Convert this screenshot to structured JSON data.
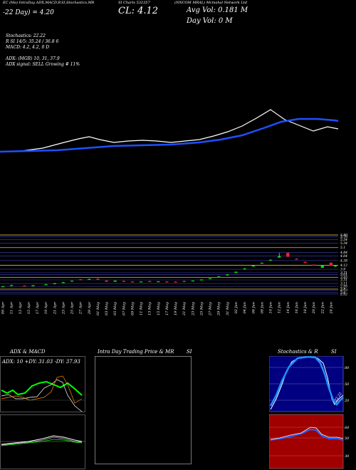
{
  "header": {
    "title_left": "EC (Ma) IntraDay ADX,MACD,R",
    "title_mid": "SI,Stochastics,MR",
    "title_right": "SI Charts 532357",
    "title_symbol": "(NNCOM MRAL) Mcmahal Network Ltd",
    "day_line": "-22 Day) = 4.20",
    "close_label": "CL: 4.12",
    "avg_vol": "Avg Vol: 0.181 M",
    "day_vol": "Day Vol: 0   M"
  },
  "indicators": {
    "stoch_line": "Stochastics: 22.22",
    "rsi_line": "R                  SI 14/5: 35.24  / 36.8                6",
    "macd_line": "MACD: 4.2, 4.2, 0  D",
    "adx_line": "ADX:                           (MGR) 10, 31, 37.9",
    "adx_signal": "ADX  signal: SELL Growing # 11%"
  },
  "panels": {
    "adx_title": "ADX  & MACD",
    "adx_readout": "ADX: 10  +DY: 31.03  -DY: 37.93",
    "intra_title": "Intra  Day Trading Price  & MR",
    "intra_title2": "SI",
    "stoch_title": "Stochastics & R",
    "stoch_title2": "SI"
  },
  "price_axis": [
    "5.80",
    "5.70",
    "5.54",
    "5.34",
    "5.1",
    "4.84",
    "4.64",
    "4.38",
    "4.12",
    "3.9",
    "3.71",
    "3.61",
    "3.45",
    "3.31",
    "3.11",
    "2.95",
    "2.8",
    "2.73",
    "2.6",
    "2.52"
  ],
  "stoch_axis": [
    "80",
    "50",
    "20"
  ],
  "rsi_axis": [
    "60",
    "50",
    "30"
  ],
  "stoch_label": "22.22",
  "colors": {
    "background": "#000000",
    "up_candle": "#00e000",
    "down_candle": "#ff2020",
    "ema_line": "#1e50ff",
    "price_line": "#ffffff",
    "stoch_bg": "#000080",
    "rsi_bg": "#a00000",
    "adx_green": "#00ff00",
    "macd_orange": "#ff8c00"
  },
  "chart_data": {
    "type": "candlestick",
    "dates": [
      "09 Apr",
      "10 Apr",
      "11 Apr",
      "12 Apr",
      "13 Apr",
      "14 Apr",
      "15 Apr",
      "16 Apr",
      "17 Apr",
      "18 Apr",
      "19 Apr",
      "20 Apr",
      "21 Apr",
      "22 Apr",
      "23 Apr",
      "24 Apr",
      "25 Apr",
      "26 Apr",
      "27 Apr",
      "28 Apr",
      "29 Apr",
      "30 Apr",
      "01 May",
      "02 May",
      "03 May",
      "04 May",
      "05 May",
      "06 May",
      "07 May",
      "08 May",
      "09 May",
      "10 May",
      "11 May",
      "12 May",
      "13 May",
      "14 May",
      "15 May",
      "16 May",
      "17 May",
      "18 May",
      "19 May",
      "20 May",
      "21 May",
      "22 May",
      "23 May",
      "24 May",
      "25 May",
      "26 May",
      "27 May",
      "28 May",
      "29 May",
      "30 May",
      "31 May",
      "01 Jun",
      "02 Jun",
      "03 Jun",
      "04 Jun",
      "05 Jun",
      "06 Jun",
      "07 Jun",
      "08 Jun",
      "09 Jun",
      "10 Jun",
      "11 Jun",
      "12 Jun",
      "13 Jun",
      "14 Jun",
      "15 Jun",
      "16 Jun",
      "17 Jun",
      "18 Jun",
      "19 Jun",
      "20 Jun",
      "21 Jun",
      "22 Jun",
      "23 Jun",
      "24 Jun",
      "25 Jun"
    ],
    "candles": [
      {
        "i": 0,
        "o": 2.95,
        "c": 2.95,
        "h": 2.97,
        "l": 2.92
      },
      {
        "i": 2,
        "o": 2.98,
        "c": 3.02,
        "h": 3.04,
        "l": 2.97
      },
      {
        "i": 5,
        "o": 2.99,
        "c": 2.97,
        "h": 3.0,
        "l": 2.95
      },
      {
        "i": 7,
        "o": 2.96,
        "c": 3.01,
        "h": 3.02,
        "l": 2.95
      },
      {
        "i": 10,
        "o": 3.04,
        "c": 3.06,
        "h": 3.09,
        "l": 3.03
      },
      {
        "i": 12,
        "o": 3.1,
        "c": 3.12,
        "h": 3.14,
        "l": 3.09
      },
      {
        "i": 14,
        "o": 3.16,
        "c": 3.18,
        "h": 3.2,
        "l": 3.15
      },
      {
        "i": 16,
        "o": 3.24,
        "c": 3.26,
        "h": 3.28,
        "l": 3.23
      },
      {
        "i": 18,
        "o": 3.34,
        "c": 3.31,
        "h": 3.35,
        "l": 3.3
      },
      {
        "i": 20,
        "o": 3.33,
        "c": 3.36,
        "h": 3.38,
        "l": 3.32
      },
      {
        "i": 22,
        "o": 3.37,
        "c": 3.34,
        "h": 3.4,
        "l": 3.33
      },
      {
        "i": 24,
        "o": 3.27,
        "c": 3.21,
        "h": 3.28,
        "l": 3.2
      },
      {
        "i": 26,
        "o": 3.21,
        "c": 3.27,
        "h": 3.28,
        "l": 3.2
      },
      {
        "i": 28,
        "o": 3.25,
        "c": 3.22,
        "h": 3.26,
        "l": 3.2
      },
      {
        "i": 30,
        "o": 3.22,
        "c": 3.2,
        "h": 3.23,
        "l": 3.19
      },
      {
        "i": 32,
        "o": 3.19,
        "c": 3.22,
        "h": 3.23,
        "l": 3.18
      },
      {
        "i": 34,
        "o": 3.24,
        "c": 3.2,
        "h": 3.25,
        "l": 3.19
      },
      {
        "i": 36,
        "o": 3.21,
        "c": 3.23,
        "h": 3.24,
        "l": 3.2
      },
      {
        "i": 38,
        "o": 3.22,
        "c": 3.2,
        "h": 3.23,
        "l": 3.19
      },
      {
        "i": 40,
        "o": 3.21,
        "c": 3.19,
        "h": 3.22,
        "l": 3.18
      },
      {
        "i": 42,
        "o": 3.24,
        "c": 3.22,
        "h": 3.26,
        "l": 3.21
      },
      {
        "i": 44,
        "o": 3.24,
        "c": 3.27,
        "h": 3.28,
        "l": 3.23
      },
      {
        "i": 46,
        "o": 3.3,
        "c": 3.33,
        "h": 3.34,
        "l": 3.29
      },
      {
        "i": 48,
        "o": 3.36,
        "c": 3.4,
        "h": 3.41,
        "l": 3.35
      },
      {
        "i": 50,
        "o": 3.47,
        "c": 3.5,
        "h": 3.52,
        "l": 3.46
      },
      {
        "i": 52,
        "o": 3.56,
        "c": 3.61,
        "h": 3.62,
        "l": 3.55
      },
      {
        "i": 54,
        "o": 3.7,
        "c": 3.76,
        "h": 3.77,
        "l": 3.69
      },
      {
        "i": 56,
        "o": 3.9,
        "c": 3.94,
        "h": 3.96,
        "l": 3.88
      },
      {
        "i": 58,
        "o": 4.06,
        "c": 4.1,
        "h": 4.12,
        "l": 4.05
      },
      {
        "i": 60,
        "o": 4.22,
        "c": 4.26,
        "h": 4.28,
        "l": 4.21
      },
      {
        "i": 62,
        "o": 4.38,
        "c": 4.42,
        "h": 4.45,
        "l": 4.37
      },
      {
        "i": 64,
        "o": 4.55,
        "c": 4.62,
        "h": 4.8,
        "l": 4.54
      },
      {
        "i": 66,
        "o": 4.8,
        "c": 4.6,
        "h": 4.82,
        "l": 4.58
      },
      {
        "i": 68,
        "o": 4.48,
        "c": 4.46,
        "h": 4.5,
        "l": 4.44
      },
      {
        "i": 70,
        "o": 4.3,
        "c": 4.28,
        "h": 4.32,
        "l": 4.26
      },
      {
        "i": 72,
        "o": 4.15,
        "c": 4.13,
        "h": 4.17,
        "l": 4.11
      },
      {
        "i": 74,
        "o": 3.98,
        "c": 4.12,
        "h": 4.14,
        "l": 3.97
      },
      {
        "i": 76,
        "o": 4.26,
        "c": 4.1,
        "h": 4.28,
        "l": 4.08
      },
      {
        "i": 77,
        "o": 4.05,
        "c": 4.12,
        "h": 4.14,
        "l": 4.03
      }
    ],
    "ylim": [
      2.52,
      5.8
    ]
  }
}
